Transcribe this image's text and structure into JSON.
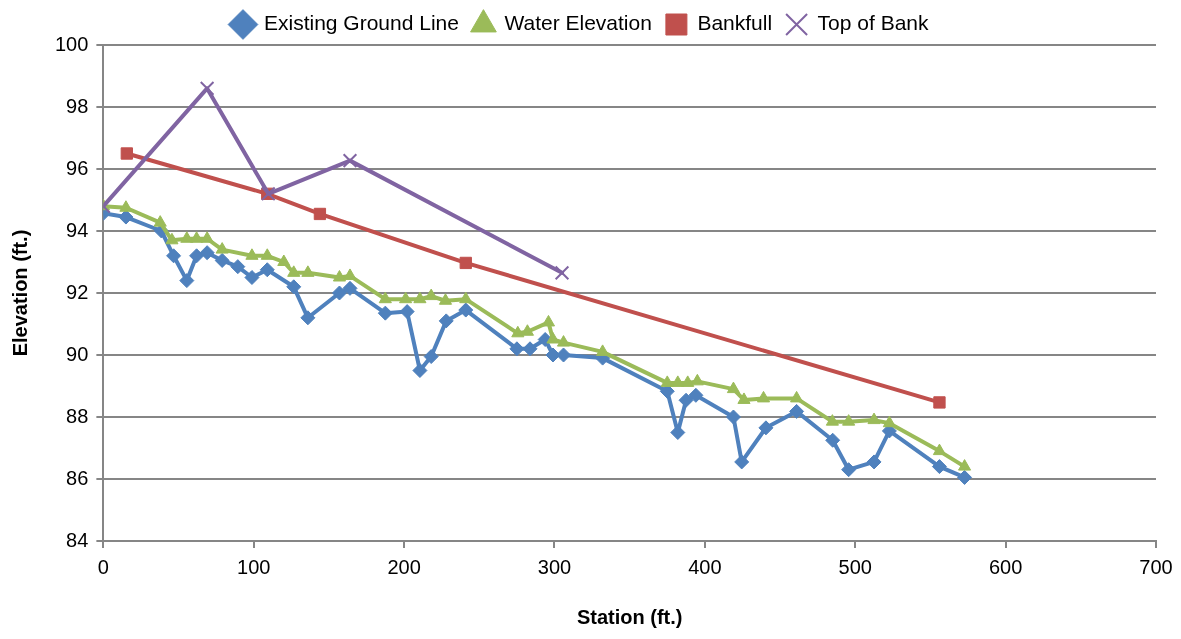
{
  "chart_data": {
    "type": "line",
    "xlabel": "Station (ft.)",
    "ylabel": "Elevation (ft.)",
    "xlim": [
      0,
      700
    ],
    "xticks": [
      0,
      100,
      200,
      300,
      400,
      500,
      600,
      700
    ],
    "ylim": [
      84,
      100
    ],
    "yticks": [
      84,
      86,
      88,
      90,
      92,
      94,
      96,
      98,
      100
    ],
    "grid": "y",
    "legend": "top",
    "line_style": "solid",
    "series": [
      {
        "name": "Existing Ground Line",
        "color": "#4f81bd",
        "marker": "diamond",
        "x": [
          0,
          15,
          38.6,
          46.7,
          55.5,
          62,
          69,
          79,
          89.4,
          98.8,
          109,
          126.6,
          136,
          157,
          164,
          187.5,
          202,
          210.5,
          218,
          228,
          241,
          275,
          283.7,
          293.8,
          299,
          306,
          332,
          375,
          382,
          387.5,
          394,
          419,
          424.5,
          440.6,
          461,
          485,
          495.6,
          512.5,
          522.7,
          556,
          572.7
        ],
        "values": [
          94.57,
          94.45,
          94.0,
          93.2,
          92.4,
          93.2,
          93.3,
          93.05,
          92.85,
          92.5,
          92.75,
          92.2,
          91.2,
          92.0,
          92.15,
          91.35,
          91.4,
          89.5,
          89.95,
          91.1,
          91.45,
          90.2,
          90.2,
          90.5,
          90.0,
          90.0,
          89.9,
          88.83,
          87.5,
          88.54,
          88.7,
          88.0,
          86.55,
          87.65,
          88.18,
          87.25,
          86.3,
          86.55,
          87.55,
          86.4,
          86.05
        ]
      },
      {
        "name": "Water Elevation",
        "color": "#9bbb59",
        "marker": "triangle",
        "x": [
          0,
          15,
          37.8,
          45.6,
          55.5,
          62,
          69,
          79,
          98.8,
          109,
          120,
          126.6,
          136,
          157,
          164,
          187.5,
          201,
          210.5,
          218,
          227.5,
          241,
          275.6,
          282,
          296,
          299,
          306,
          332,
          375,
          382,
          388.6,
          395,
          419,
          426,
          439,
          461,
          484.8,
          495.6,
          512.5,
          522.7,
          556,
          572.7
        ],
        "values": [
          94.8,
          94.75,
          94.27,
          93.7,
          93.75,
          93.75,
          93.75,
          93.4,
          93.2,
          93.2,
          93.0,
          92.65,
          92.65,
          92.5,
          92.55,
          91.8,
          91.8,
          91.8,
          91.9,
          91.75,
          91.8,
          90.7,
          90.75,
          91.05,
          90.5,
          90.4,
          90.1,
          89.1,
          89.1,
          89.1,
          89.15,
          88.9,
          88.55,
          88.6,
          88.6,
          87.85,
          87.85,
          87.9,
          87.8,
          86.9,
          86.4
        ]
      },
      {
        "name": "Bankfull",
        "color": "#c0504d",
        "marker": "square",
        "x": [
          15.6,
          109,
          144,
          241,
          556
        ],
        "values": [
          96.5,
          95.2,
          94.55,
          92.97,
          88.47
        ]
      },
      {
        "name": "Top of Bank",
        "color": "#8064a2",
        "marker": "cross",
        "x": [
          0,
          69,
          109.7,
          164,
          305
        ],
        "values": [
          94.8,
          98.6,
          95.2,
          96.27,
          92.65
        ]
      }
    ]
  }
}
